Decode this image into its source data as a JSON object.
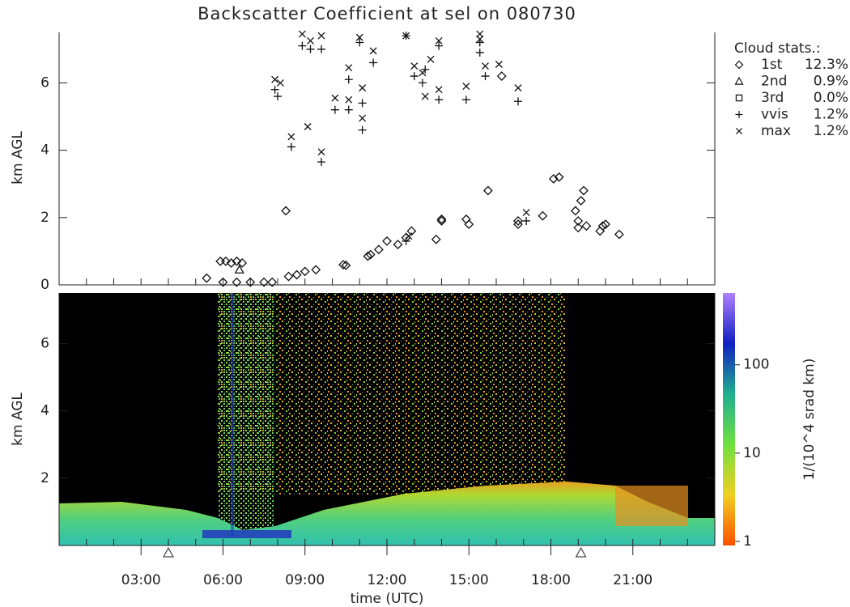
{
  "chart_data": [
    {
      "type": "scatter",
      "title": "Backscatter Coefficient at sel on 080730",
      "ylabel": "km AGL",
      "xlim": [
        0,
        24
      ],
      "ylim": [
        0,
        7.5
      ],
      "yticks": [
        0,
        2,
        4,
        6
      ],
      "legend_title": "Cloud stats.:",
      "series": [
        {
          "name": "1st",
          "marker": "diamond",
          "share": {
            "value": 12.3,
            "label": "12.3%"
          },
          "x": [
            5.4,
            5.9,
            6.1,
            6.3,
            6.5,
            6.7,
            6.0,
            6.5,
            7.0,
            7.5,
            7.8,
            8.3,
            8.4,
            8.7,
            9.0,
            9.4,
            10.4,
            10.5,
            11.3,
            11.4,
            11.7,
            12.0,
            12.4,
            12.7,
            12.9,
            13.8,
            14.0,
            14.0,
            14.9,
            15.0,
            15.7,
            16.2,
            16.8,
            16.8,
            17.7,
            18.1,
            18.3,
            18.9,
            19.0,
            19.0,
            19.1,
            19.2,
            19.3,
            19.8,
            19.9,
            20.0,
            20.5
          ],
          "values": [
            0.2,
            0.7,
            0.7,
            0.65,
            0.7,
            0.65,
            0.08,
            0.08,
            0.08,
            0.08,
            0.08,
            2.2,
            0.25,
            0.3,
            0.4,
            0.45,
            0.6,
            0.58,
            0.85,
            0.9,
            1.05,
            1.3,
            1.2,
            1.4,
            1.6,
            1.35,
            1.95,
            1.9,
            1.95,
            1.8,
            2.8,
            6.2,
            1.8,
            1.9,
            2.05,
            3.15,
            3.2,
            2.2,
            1.9,
            1.7,
            2.5,
            2.8,
            1.75,
            1.6,
            1.75,
            1.8,
            1.5
          ]
        },
        {
          "name": "2nd",
          "marker": "triangle",
          "share": {
            "value": 0.9,
            "label": "0.9%"
          },
          "x": [
            6.6
          ],
          "values": [
            0.45
          ]
        },
        {
          "name": "3rd",
          "marker": "square",
          "share": {
            "value": 0.0,
            "label": "0.0%"
          },
          "x": [],
          "values": []
        },
        {
          "name": "vvis",
          "marker": "plus",
          "share": {
            "value": 1.2,
            "label": "1.2%"
          },
          "x": [
            7.9,
            8.0,
            8.5,
            8.9,
            9.2,
            9.6,
            9.6,
            10.1,
            10.6,
            10.6,
            11.0,
            11.1,
            11.1,
            11.5,
            12.7,
            12.7,
            13.0,
            13.3,
            13.4,
            13.9,
            13.9,
            14.9,
            15.4,
            15.4,
            15.6,
            17.1,
            16.8
          ],
          "values": [
            5.8,
            5.6,
            4.1,
            7.1,
            7.0,
            3.65,
            7.0,
            5.2,
            6.1,
            5.2,
            7.2,
            4.6,
            5.4,
            6.6,
            7.4,
            1.3,
            6.2,
            6.0,
            6.4,
            5.5,
            7.1,
            5.5,
            7.2,
            6.9,
            6.2,
            1.9,
            5.45
          ]
        },
        {
          "name": "max",
          "marker": "cross",
          "share": {
            "value": 1.2,
            "label": "1.2%"
          },
          "x": [
            7.9,
            8.1,
            8.5,
            8.9,
            9.2,
            9.6,
            9.6,
            9.1,
            10.1,
            10.6,
            10.6,
            11.0,
            11.1,
            11.1,
            11.5,
            12.7,
            12.8,
            13.0,
            13.3,
            13.4,
            13.6,
            13.9,
            13.9,
            14.9,
            15.4,
            15.4,
            15.6,
            16.1,
            16.8,
            17.1
          ],
          "values": [
            6.1,
            6.0,
            4.4,
            7.45,
            7.25,
            3.95,
            7.4,
            4.7,
            5.55,
            6.45,
            5.5,
            7.35,
            4.95,
            5.85,
            6.95,
            7.4,
            1.45,
            6.5,
            6.3,
            5.6,
            6.7,
            5.8,
            7.25,
            5.9,
            7.45,
            7.3,
            6.5,
            6.55,
            5.85,
            2.15
          ]
        }
      ]
    },
    {
      "type": "heatmap",
      "ylabel": "km AGL",
      "xlabel": "time (UTC)",
      "xlim": [
        0,
        24
      ],
      "ylim": [
        0,
        7.5
      ],
      "yticks": [
        2,
        4,
        6
      ],
      "xticks": [
        {
          "value": 3,
          "label": "03:00"
        },
        {
          "value": 6,
          "label": "06:00"
        },
        {
          "value": 9,
          "label": "09:00"
        },
        {
          "value": 12,
          "label": "12:00"
        },
        {
          "value": 15,
          "label": "15:00"
        },
        {
          "value": 18,
          "label": "18:00"
        },
        {
          "value": 21,
          "label": "21:00"
        }
      ],
      "markers_x": [
        4.0,
        19.1
      ],
      "colorbar": {
        "label": "1/(10^4 srad km)",
        "log": true,
        "lim": [
          0.9,
          650
        ],
        "ticks": [
          1,
          10,
          100
        ]
      }
    }
  ]
}
